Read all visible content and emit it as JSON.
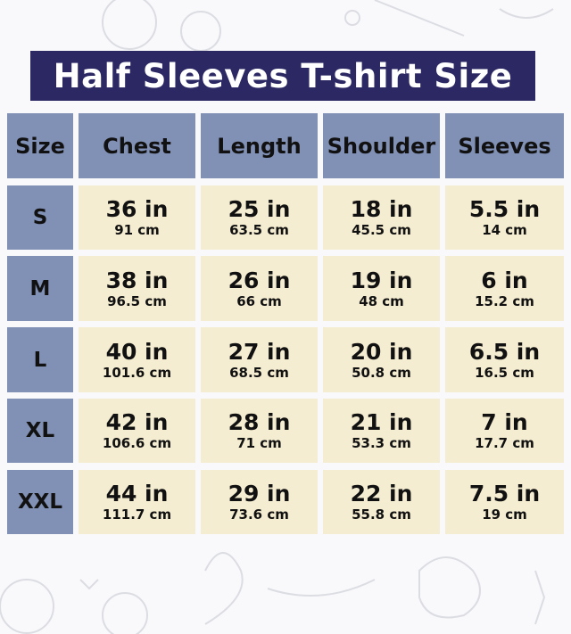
{
  "title": "Half Sleeves T-shirt Size",
  "table": {
    "headers": [
      "Size",
      "Chest",
      "Length",
      "Shoulder",
      "Sleeves"
    ],
    "rows": [
      {
        "size": "S",
        "values": [
          {
            "in": "36 in",
            "cm": "91 cm"
          },
          {
            "in": "25 in",
            "cm": "63.5 cm"
          },
          {
            "in": "18 in",
            "cm": "45.5 cm"
          },
          {
            "in": "5.5 in",
            "cm": "14 cm"
          }
        ]
      },
      {
        "size": "M",
        "values": [
          {
            "in": "38 in",
            "cm": "96.5 cm"
          },
          {
            "in": "26 in",
            "cm": "66 cm"
          },
          {
            "in": "19 in",
            "cm": "48 cm"
          },
          {
            "in": "6 in",
            "cm": "15.2 cm"
          }
        ]
      },
      {
        "size": "L",
        "values": [
          {
            "in": "40 in",
            "cm": "101.6 cm"
          },
          {
            "in": "27 in",
            "cm": "68.5 cm"
          },
          {
            "in": "20 in",
            "cm": "50.8 cm"
          },
          {
            "in": "6.5 in",
            "cm": "16.5 cm"
          }
        ]
      },
      {
        "size": "XL",
        "values": [
          {
            "in": "42 in",
            "cm": "106.6 cm"
          },
          {
            "in": "28 in",
            "cm": "71 cm"
          },
          {
            "in": "21 in",
            "cm": "53.3 cm"
          },
          {
            "in": "7 in",
            "cm": "17.7 cm"
          }
        ]
      },
      {
        "size": "XXL",
        "values": [
          {
            "in": "44 in",
            "cm": "111.7 cm"
          },
          {
            "in": "29 in",
            "cm": "73.6 cm"
          },
          {
            "in": "22 in",
            "cm": "55.8 cm"
          },
          {
            "in": "7.5 in",
            "cm": "19 cm"
          }
        ]
      }
    ]
  },
  "colors": {
    "title_bg": "#2b2863",
    "header_bg": "#8190b5",
    "cell_bg": "#f5edd1",
    "background": "#f9f9fb"
  }
}
